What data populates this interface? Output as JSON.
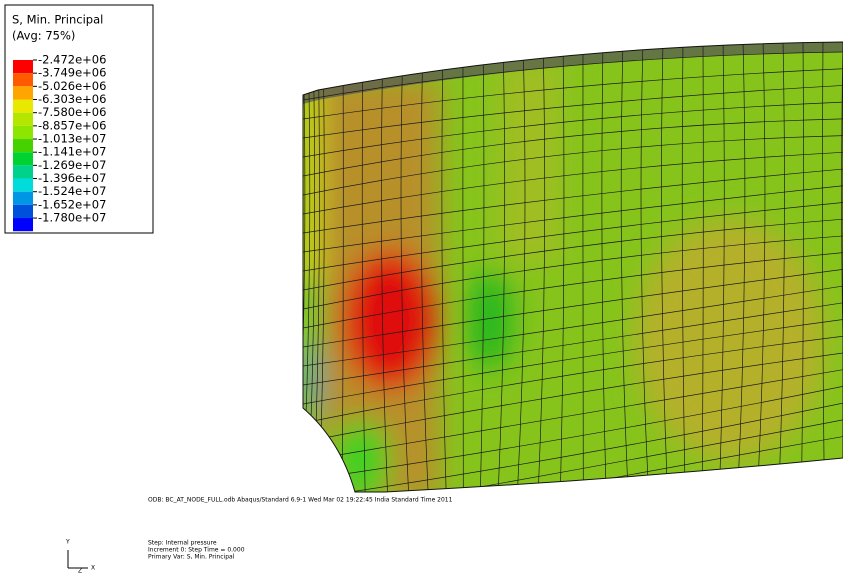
{
  "legend": {
    "title": "S, Min. Principal",
    "subtitle": "(Avg: 75%)",
    "levels": [
      "-2.472e+06",
      "-3.749e+06",
      "-5.026e+06",
      "-6.303e+06",
      "-7.580e+06",
      "-8.857e+06",
      "-1.013e+07",
      "-1.141e+07",
      "-1.269e+07",
      "-1.396e+07",
      "-1.524e+07",
      "-1.652e+07",
      "-1.780e+07"
    ],
    "colors": [
      "#ff0000",
      "#ff5a00",
      "#ffa500",
      "#e8e800",
      "#b4e600",
      "#8ce600",
      "#46d200",
      "#00d232",
      "#00d28c",
      "#00dcdc",
      "#0096e6",
      "#0050dc",
      "#0000ff"
    ]
  },
  "footer": {
    "odb": "ODB: BC_AT_NODE_FULL.odb    Abaqus/Standard 6.9-1    Wed Mar 02 19:22:45 India Standard Time 2011",
    "step": "Step: Internal pressure",
    "increment": "Increment    0: Step Time =    0.000",
    "primary_var": "Primary Var: S, Min. Principal"
  },
  "triad": {
    "y": "Y",
    "x": "X",
    "z": "Z"
  }
}
